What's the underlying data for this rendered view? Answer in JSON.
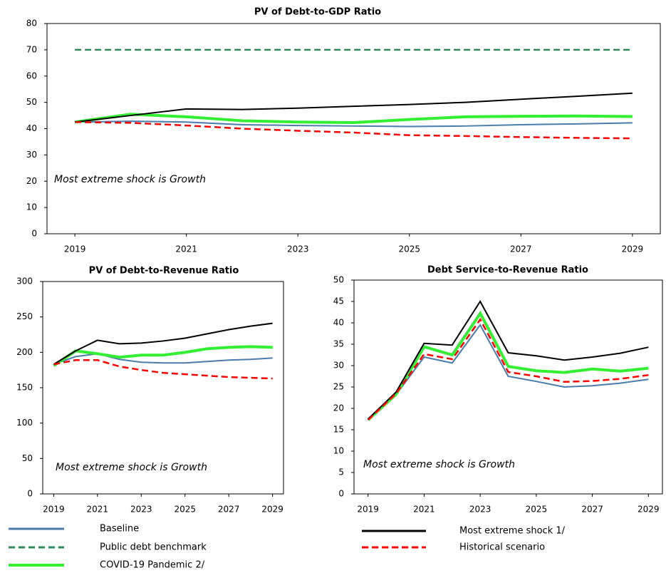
{
  "chart_data": [
    {
      "type": "line",
      "title": "PV of Debt-to-GDP Ratio",
      "annotation": "Most extreme shock is Growth",
      "x": [
        2019,
        2020,
        2021,
        2022,
        2023,
        2024,
        2025,
        2026,
        2027,
        2028,
        2029
      ],
      "xlim": [
        2018.5,
        2029.5
      ],
      "xticks": [
        2019,
        2021,
        2023,
        2025,
        2027,
        2029
      ],
      "ylim": [
        0,
        80
      ],
      "yticks": [
        0,
        10,
        20,
        30,
        40,
        50,
        60,
        70,
        80
      ],
      "series": [
        {
          "name": "Baseline",
          "color": "#4a7bab",
          "dash": false,
          "values": [
            42.5,
            42.8,
            42.5,
            41.5,
            41.2,
            41,
            40.8,
            41,
            41.5,
            41.8,
            42.2
          ]
        },
        {
          "name": "Public debt benchmark",
          "color": "#2e8b57",
          "dash": true,
          "values": [
            70,
            70,
            70,
            70,
            70,
            70,
            70,
            70,
            70,
            70,
            70
          ]
        },
        {
          "name": "COVID-19 Pandemic 2/",
          "color": "#33ee33",
          "dash": false,
          "values": [
            42.5,
            45.5,
            44.5,
            43,
            42.5,
            42.3,
            43.5,
            44.5,
            44.7,
            44.8,
            44.6
          ]
        },
        {
          "name": "Most extreme shock 1/",
          "color": "#000000",
          "dash": false,
          "values": [
            42.5,
            45,
            47.5,
            47.3,
            47.8,
            48.5,
            49.2,
            50,
            51.2,
            52.3,
            53.5
          ]
        },
        {
          "name": "Historical scenario",
          "color": "#ff0000",
          "dash": true,
          "values": [
            42.5,
            42.2,
            41.2,
            40,
            39.2,
            38.5,
            37.5,
            37.2,
            36.8,
            36.5,
            36.3
          ]
        }
      ]
    },
    {
      "type": "line",
      "title": "PV of Debt-to-Revenue Ratio",
      "annotation": "Most extreme shock is Growth",
      "x": [
        2019,
        2020,
        2021,
        2022,
        2023,
        2024,
        2025,
        2026,
        2027,
        2028,
        2029
      ],
      "xlim": [
        2018.5,
        2029.5
      ],
      "xticks": [
        2019,
        2021,
        2023,
        2025,
        2027,
        2029
      ],
      "ylim": [
        0,
        300
      ],
      "yticks": [
        0,
        50,
        100,
        150,
        200,
        250,
        300
      ],
      "series": [
        {
          "name": "Baseline",
          "color": "#4a7bab",
          "dash": false,
          "values": [
            183,
            194,
            198,
            190,
            186,
            185,
            185,
            187,
            189,
            190,
            192
          ]
        },
        {
          "name": "COVID-19 Pandemic 2/",
          "color": "#33ee33",
          "dash": false,
          "values": [
            181,
            202,
            198,
            193,
            196,
            196,
            200,
            205,
            207,
            208,
            207
          ]
        },
        {
          "name": "Most extreme shock 1/",
          "color": "#000000",
          "dash": false,
          "values": [
            183,
            202,
            217,
            212,
            213,
            216,
            220,
            226,
            232,
            237,
            241
          ]
        },
        {
          "name": "Historical scenario",
          "color": "#ff0000",
          "dash": true,
          "values": [
            183,
            189,
            189,
            180,
            175,
            171,
            169,
            167,
            165,
            164,
            163
          ]
        }
      ]
    },
    {
      "type": "line",
      "title": "Debt Service-to-Revenue Ratio",
      "annotation": "Most extreme shock is Growth",
      "x": [
        2019,
        2020,
        2021,
        2022,
        2023,
        2024,
        2025,
        2026,
        2027,
        2028,
        2029
      ],
      "xlim": [
        2018.5,
        2029.5
      ],
      "xticks": [
        2019,
        2021,
        2023,
        2025,
        2027,
        2029
      ],
      "ylim": [
        0,
        50
      ],
      "yticks": [
        0,
        5,
        10,
        15,
        20,
        25,
        30,
        35,
        40,
        45,
        50
      ],
      "series": [
        {
          "name": "Baseline",
          "color": "#4a7bab",
          "dash": false,
          "values": [
            17.3,
            23.2,
            32,
            30.6,
            39.5,
            27.5,
            26.3,
            25,
            25.3,
            25.9,
            26.8
          ]
        },
        {
          "name": "COVID-19 Pandemic 2/",
          "color": "#33ee33",
          "dash": false,
          "values": [
            17.3,
            23.3,
            34.4,
            32.5,
            42.2,
            29.8,
            28.8,
            28.4,
            29.2,
            28.7,
            29.4
          ]
        },
        {
          "name": "Most extreme shock 1/",
          "color": "#000000",
          "dash": false,
          "values": [
            17.5,
            23.8,
            35.2,
            34.8,
            45,
            33,
            32.3,
            31.3,
            32,
            32.9,
            34.3
          ]
        },
        {
          "name": "Historical scenario",
          "color": "#ff0000",
          "dash": true,
          "values": [
            17.3,
            23.5,
            32.7,
            31.5,
            40.8,
            28.5,
            27.5,
            26.2,
            26.4,
            26.9,
            27.8
          ]
        }
      ]
    }
  ]
}
